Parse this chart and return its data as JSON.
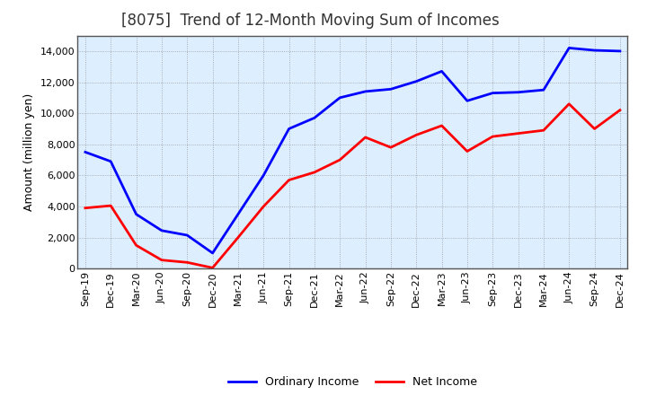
{
  "title": "[8075]  Trend of 12-Month Moving Sum of Incomes",
  "ylabel": "Amount (million yen)",
  "xlabels": [
    "Sep-19",
    "Dec-19",
    "Mar-20",
    "Jun-20",
    "Sep-20",
    "Dec-20",
    "Mar-21",
    "Jun-21",
    "Sep-21",
    "Dec-21",
    "Mar-22",
    "Jun-22",
    "Sep-22",
    "Dec-22",
    "Mar-23",
    "Jun-23",
    "Sep-23",
    "Dec-23",
    "Mar-24",
    "Jun-24",
    "Sep-24",
    "Dec-24"
  ],
  "ordinary_income": [
    7500,
    6900,
    3500,
    2450,
    2150,
    1000,
    3500,
    6000,
    9000,
    9700,
    11000,
    11400,
    11550,
    12050,
    12700,
    10800,
    11300,
    11350,
    11500,
    14200,
    14050,
    14000
  ],
  "net_income": [
    3900,
    4050,
    1500,
    550,
    400,
    50,
    2000,
    4000,
    5700,
    6200,
    7000,
    8450,
    7800,
    8600,
    9200,
    7550,
    8500,
    8700,
    8900,
    10600,
    9000,
    10200
  ],
  "ordinary_color": "#0000FF",
  "net_color": "#FF0000",
  "line_width": 2.0,
  "ylim": [
    0,
    15000
  ],
  "yticks": [
    0,
    2000,
    4000,
    6000,
    8000,
    10000,
    12000,
    14000
  ],
  "background_color": "#FFFFFF",
  "plot_bg_color": "#DDEEFF",
  "grid_color": "#888888",
  "title_fontsize": 12,
  "tick_fontsize": 8,
  "ylabel_fontsize": 9,
  "legend_labels": [
    "Ordinary Income",
    "Net Income"
  ]
}
